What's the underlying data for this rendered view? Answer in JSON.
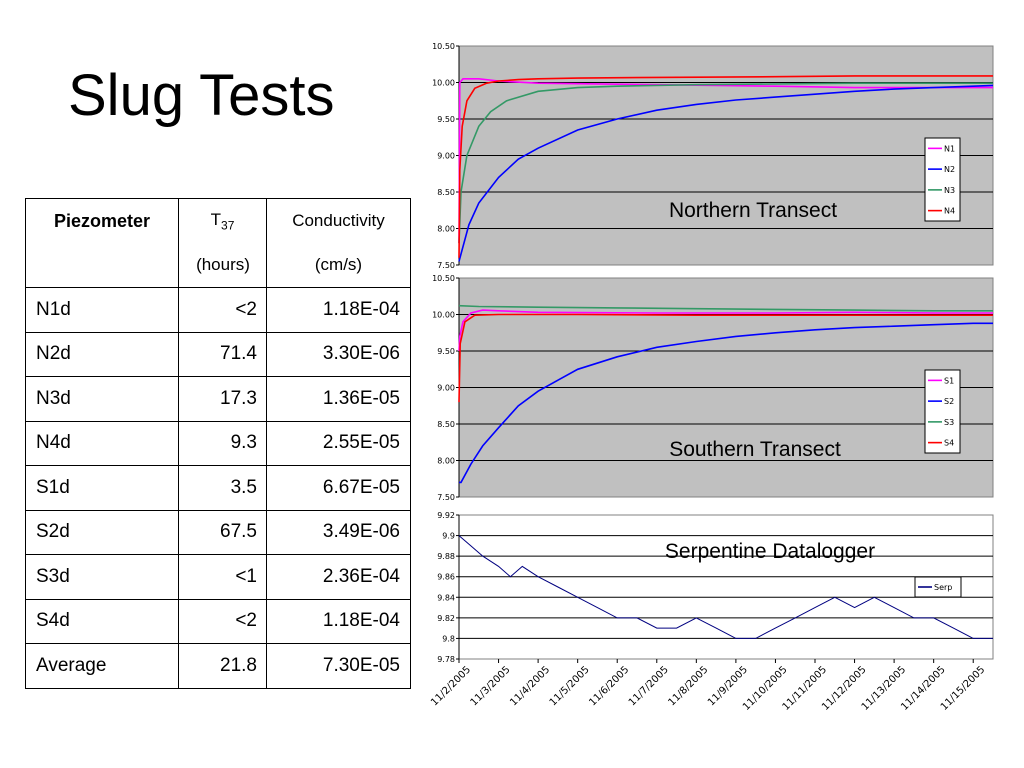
{
  "slide": {
    "title": "Slug Tests"
  },
  "table": {
    "header": {
      "col0": "Piezometer",
      "col1_main": "T",
      "col1_sub": "37",
      "col2": "Conductivity"
    },
    "units": {
      "col0": "",
      "col1": "(hours)",
      "col2": "(cm/s)"
    },
    "rows": [
      {
        "name": "N1d",
        "t37": "<2",
        "k": "1.18E-04"
      },
      {
        "name": "N2d",
        "t37": "71.4",
        "k": "3.30E-06"
      },
      {
        "name": "N3d",
        "t37": "17.3",
        "k": "1.36E-05"
      },
      {
        "name": "N4d",
        "t37": "9.3",
        "k": "2.55E-05"
      },
      {
        "name": "S1d",
        "t37": "3.5",
        "k": "6.67E-05"
      },
      {
        "name": "S2d",
        "t37": "67.5",
        "k": "3.49E-06"
      },
      {
        "name": "S3d",
        "t37": "<1",
        "k": "2.36E-04"
      },
      {
        "name": "S4d",
        "t37": "<2",
        "k": "1.18E-04"
      },
      {
        "name": "Average",
        "t37": "21.8",
        "k": "7.30E-05"
      }
    ]
  },
  "chart_data": [
    {
      "type": "line",
      "title": "Northern Transect",
      "ylim": [
        7.5,
        10.5
      ],
      "yticks": [
        "10.50",
        "10.00",
        "9.50",
        "9.00",
        "8.50",
        "8.00",
        "7.50"
      ],
      "grid": true,
      "legend_position": "right",
      "plot_bg": "#c0c0c0",
      "series": [
        {
          "name": "N1",
          "color": "#ff00ff",
          "x": [
            0,
            0.02,
            0.1,
            0.5,
            1,
            2,
            5,
            8,
            10,
            12,
            13.5
          ],
          "y": [
            7.8,
            10.0,
            10.05,
            10.05,
            10.02,
            9.99,
            9.97,
            9.95,
            9.93,
            9.93,
            9.93
          ]
        },
        {
          "name": "N2",
          "color": "#0000ff",
          "x": [
            0,
            0.25,
            0.5,
            1,
            1.5,
            2,
            3,
            4,
            5,
            6,
            7,
            8,
            9,
            10,
            11,
            12,
            13,
            13.5
          ],
          "y": [
            7.55,
            8.05,
            8.35,
            8.7,
            8.95,
            9.1,
            9.35,
            9.5,
            9.62,
            9.7,
            9.76,
            9.8,
            9.84,
            9.88,
            9.91,
            9.93,
            9.95,
            9.96
          ]
        },
        {
          "name": "N3",
          "color": "#339966",
          "x": [
            0,
            0.05,
            0.2,
            0.5,
            0.8,
            1.2,
            2,
            3,
            4,
            6,
            8,
            10,
            12,
            13.5
          ],
          "y": [
            7.8,
            8.5,
            9.0,
            9.4,
            9.6,
            9.75,
            9.88,
            9.93,
            9.95,
            9.97,
            9.98,
            9.99,
            9.99,
            9.99
          ]
        },
        {
          "name": "N4",
          "color": "#ff0000",
          "x": [
            0,
            0.02,
            0.08,
            0.2,
            0.4,
            0.7,
            1,
            1.5,
            2,
            3,
            5,
            8,
            10,
            12,
            13.5
          ],
          "y": [
            7.6,
            8.8,
            9.4,
            9.75,
            9.92,
            9.99,
            10.02,
            10.04,
            10.05,
            10.06,
            10.07,
            10.08,
            10.09,
            10.09,
            10.09
          ]
        }
      ]
    },
    {
      "type": "line",
      "title": "Southern Transect",
      "ylim": [
        7.5,
        10.5
      ],
      "yticks": [
        "10.50",
        "10.00",
        "9.50",
        "9.00",
        "8.50",
        "8.00",
        "7.50"
      ],
      "grid": true,
      "legend_position": "right",
      "plot_bg": "#c0c0c0",
      "series": [
        {
          "name": "S1",
          "color": "#ff00ff",
          "x": [
            0,
            0.02,
            0.1,
            0.3,
            0.6,
            1,
            2,
            5,
            8,
            10,
            12,
            13.5
          ],
          "y": [
            9.5,
            9.7,
            9.9,
            10.02,
            10.06,
            10.05,
            10.03,
            10.02,
            10.02,
            10.03,
            10.02,
            10.02
          ]
        },
        {
          "name": "S2",
          "color": "#0000ff",
          "x": [
            0,
            0.05,
            0.3,
            0.6,
            1,
            1.5,
            2,
            2.5,
            3,
            4,
            5,
            6,
            7,
            8,
            9,
            10,
            11,
            12,
            13,
            13.5
          ],
          "y": [
            7.7,
            7.7,
            7.95,
            8.2,
            8.45,
            8.75,
            8.95,
            9.1,
            9.25,
            9.42,
            9.55,
            9.63,
            9.7,
            9.75,
            9.79,
            9.82,
            9.84,
            9.86,
            9.88,
            9.88
          ]
        },
        {
          "name": "S3",
          "color": "#339966",
          "x": [
            0,
            0.5,
            2,
            4,
            6,
            8,
            10,
            12,
            13.5
          ],
          "y": [
            10.12,
            10.11,
            10.1,
            10.09,
            10.08,
            10.07,
            10.06,
            10.05,
            10.05
          ]
        },
        {
          "name": "S4",
          "color": "#ff0000",
          "x": [
            0,
            0.03,
            0.15,
            0.4,
            1,
            3,
            6,
            9,
            12,
            13.5
          ],
          "y": [
            8.8,
            9.6,
            9.9,
            9.99,
            10.0,
            10.0,
            9.99,
            9.99,
            9.99,
            9.99
          ]
        }
      ]
    },
    {
      "type": "line",
      "title": "Serpentine Datalogger",
      "ylim": [
        9.78,
        9.92
      ],
      "yticks": [
        "9.92",
        "9.9",
        "9.88",
        "9.86",
        "9.84",
        "9.82",
        "9.8",
        "9.78"
      ],
      "grid": true,
      "legend_position": "right",
      "plot_bg": "#ffffff",
      "series": [
        {
          "name": "Serp",
          "color": "#000080",
          "x": [
            0,
            0.3,
            0.6,
            1,
            1.3,
            1.6,
            2,
            2.5,
            3,
            3.5,
            4,
            4.5,
            5,
            5.5,
            6,
            6.5,
            7,
            7.5,
            8,
            8.5,
            9,
            9.5,
            10,
            10.5,
            11,
            11.5,
            12,
            12.5,
            13,
            13.5
          ],
          "y": [
            9.9,
            9.89,
            9.88,
            9.87,
            9.86,
            9.87,
            9.86,
            9.85,
            9.84,
            9.83,
            9.82,
            9.82,
            9.81,
            9.81,
            9.82,
            9.81,
            9.8,
            9.8,
            9.81,
            9.82,
            9.83,
            9.84,
            9.83,
            9.84,
            9.83,
            9.82,
            9.82,
            9.81,
            9.8,
            9.8
          ]
        }
      ]
    }
  ],
  "dates": [
    "11/2/2005",
    "11/3/2005",
    "11/4/2005",
    "11/5/2005",
    "11/6/2005",
    "11/7/2005",
    "11/8/2005",
    "11/9/2005",
    "11/10/2005",
    "11/11/2005",
    "11/12/2005",
    "11/13/2005",
    "11/14/2005",
    "11/15/2005"
  ]
}
